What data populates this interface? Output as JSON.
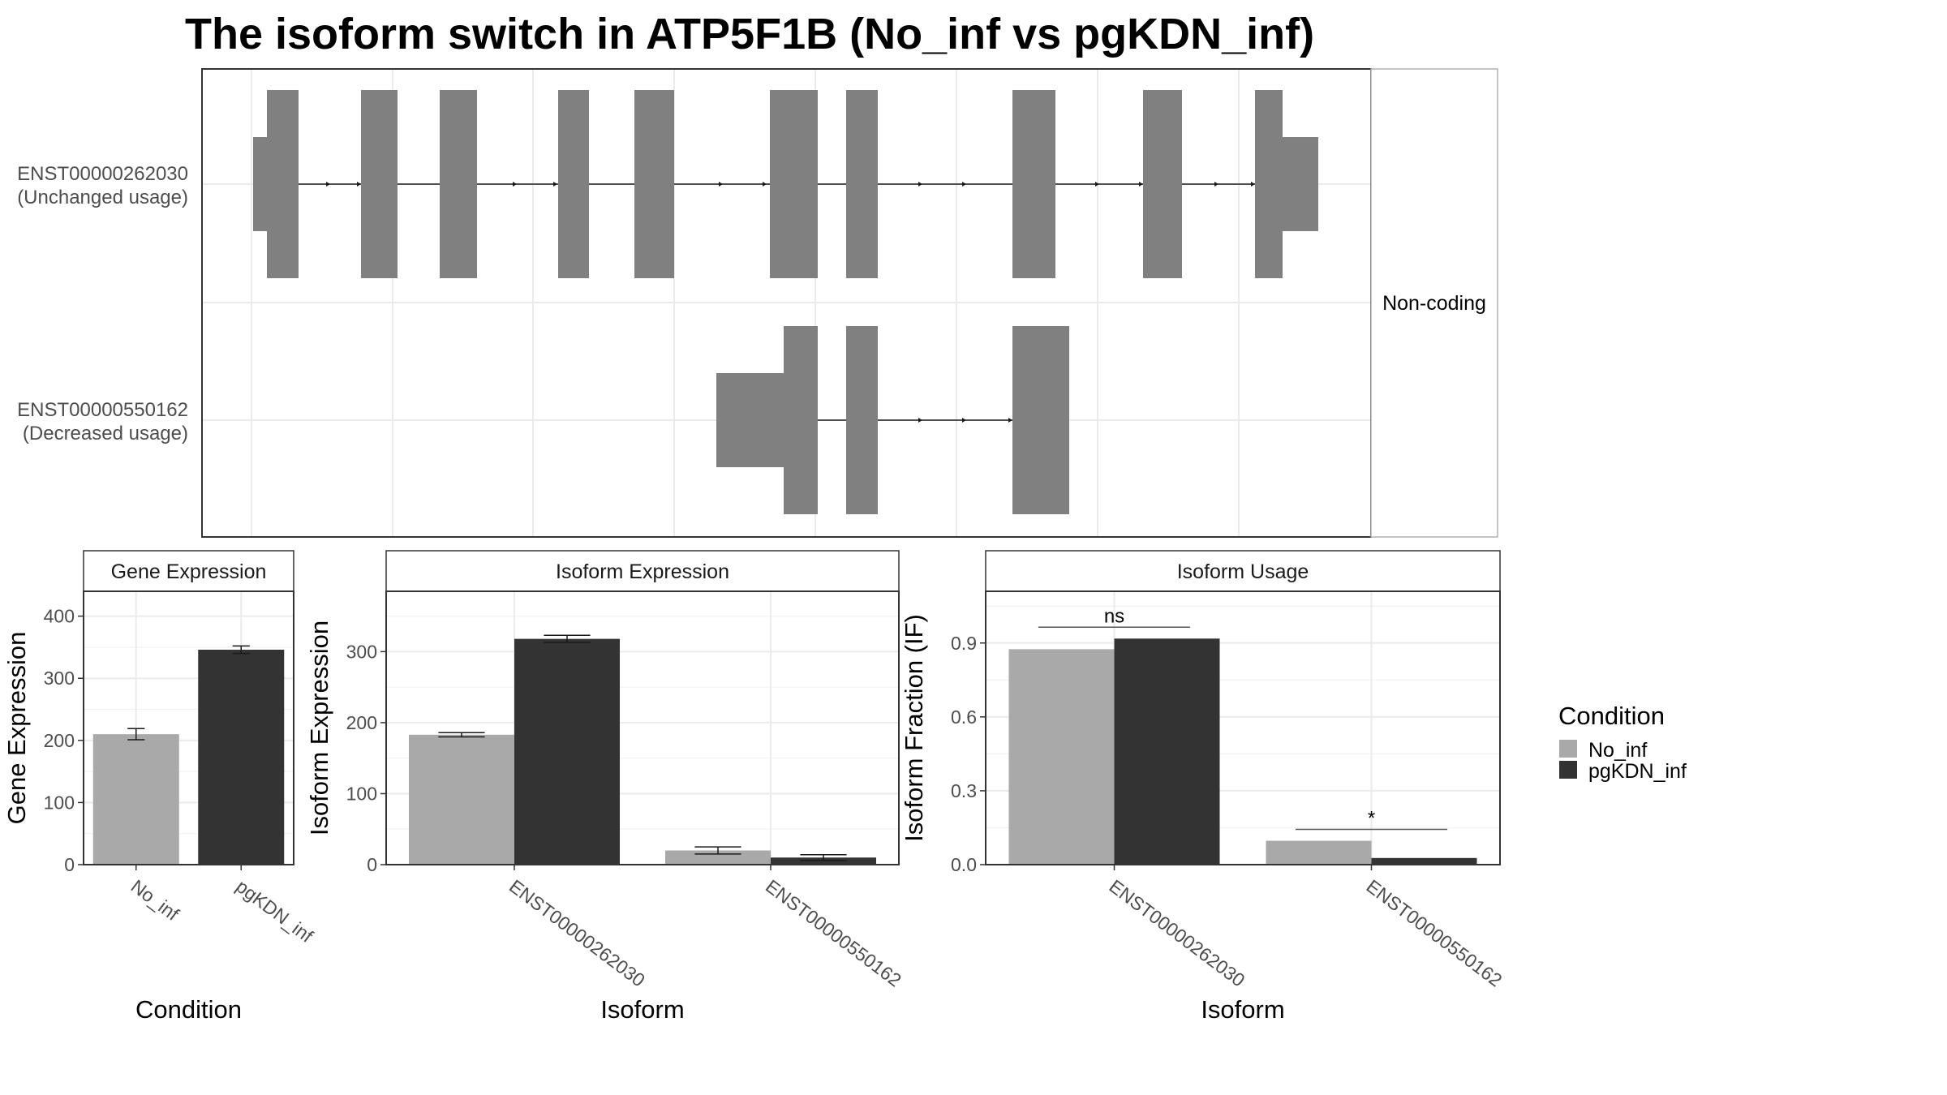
{
  "title": "The isoform switch in ATP5F1B (No_inf vs pgKDN_inf)",
  "colors": {
    "No_inf": "#a9a9a9",
    "pgKDN_inf": "#333333",
    "exon": "#808080",
    "grid": "#ebebeb",
    "strip_fill": "#ffffff"
  },
  "chart_data": [
    {
      "type": "gene-structure",
      "facet_label": "Non-coding",
      "transcripts": [
        {
          "id": "ENST00000262030",
          "usage": "(Unchanged usage)"
        },
        {
          "id": "ENST00000550162",
          "usage": "(Decreased usage)"
        }
      ]
    },
    {
      "type": "bar",
      "title": "Gene Expression",
      "xlabel": "Condition",
      "ylabel": "Gene Expression",
      "categories": [
        "No_inf",
        "pgKDN_inf"
      ],
      "values": [
        210,
        346
      ],
      "errors": [
        9,
        6
      ],
      "ylim": [
        0,
        440
      ],
      "yticks": [
        0,
        100,
        200,
        300,
        400
      ]
    },
    {
      "type": "bar",
      "title": "Isoform Expression",
      "xlabel": "Isoform",
      "ylabel": "Isoform Expression",
      "categories": [
        "ENST00000262030",
        "ENST00000550162"
      ],
      "series": [
        {
          "name": "No_inf",
          "values": [
            183,
            20
          ],
          "errors": [
            3,
            5
          ]
        },
        {
          "name": "pgKDN_inf",
          "values": [
            318,
            10
          ],
          "errors": [
            5,
            4
          ]
        }
      ],
      "ylim": [
        0,
        385
      ],
      "yticks": [
        0,
        100,
        200,
        300
      ]
    },
    {
      "type": "bar",
      "title": "Isoform Usage",
      "xlabel": "Isoform",
      "ylabel": "Isoform Fraction (IF)",
      "categories": [
        "ENST00000262030",
        "ENST00000550162"
      ],
      "series": [
        {
          "name": "No_inf",
          "values": [
            0.875,
            0.097
          ]
        },
        {
          "name": "pgKDN_inf",
          "values": [
            0.918,
            0.027
          ]
        }
      ],
      "significance": [
        "ns",
        "*"
      ],
      "ylim": [
        0,
        1.11
      ],
      "yticks": [
        0.0,
        0.3,
        0.6,
        0.9
      ],
      "ytick_labels": [
        "0.0",
        "0.3",
        "0.6",
        "0.9"
      ]
    }
  ],
  "legend": {
    "title": "Condition",
    "items": [
      "No_inf",
      "pgKDN_inf"
    ]
  }
}
